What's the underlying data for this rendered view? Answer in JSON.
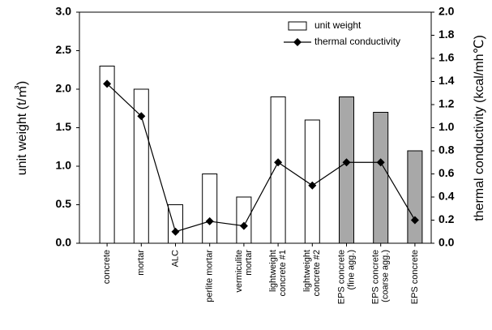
{
  "chart_data": {
    "type": "bar-line",
    "categories": [
      [
        "concrete"
      ],
      [
        "mortar"
      ],
      [
        "ALC"
      ],
      [
        "perlite mortar"
      ],
      [
        "vermiculite",
        "mortar"
      ],
      [
        "lightweight",
        "concrete #1"
      ],
      [
        "lightweight",
        "concrete #2"
      ],
      [
        "EPS concrete",
        "(fine agg.)"
      ],
      [
        "EPS concrete",
        "(coarse agg.)"
      ],
      [
        "EPS concrete"
      ]
    ],
    "series": [
      {
        "name": "unit weight",
        "type": "bar",
        "colors": [
          "#ffffff",
          "#ffffff",
          "#ffffff",
          "#ffffff",
          "#ffffff",
          "#ffffff",
          "#ffffff",
          "#a8a8a8",
          "#a8a8a8",
          "#a8a8a8"
        ],
        "values": [
          2.3,
          2.0,
          0.5,
          0.9,
          0.6,
          1.9,
          1.6,
          1.9,
          1.7,
          1.2
        ]
      },
      {
        "name": "thermal conductivity",
        "type": "line",
        "axis": "y2",
        "color": "#000000",
        "values": [
          1.38,
          1.1,
          0.1,
          0.19,
          0.15,
          0.7,
          0.5,
          0.7,
          0.7,
          0.2
        ]
      }
    ],
    "ylabel": "unit weight (t/㎥)",
    "y2label": "thermal conductivity (kcal/mh℃)",
    "ylim": [
      0,
      3
    ],
    "yticks": [
      {
        "value": 0,
        "label": "0.0"
      },
      0.5,
      {
        "value": 1,
        "label": "1.0"
      },
      1.5,
      {
        "value": 2,
        "label": "2.0"
      },
      2.5,
      {
        "value": 3,
        "label": "3.0"
      }
    ],
    "y2lim": [
      0,
      2
    ],
    "y2ticks": [
      {
        "value": 0,
        "label": "0.0"
      },
      0.2,
      0.4,
      0.6,
      0.8,
      {
        "value": 1,
        "label": "1.0"
      },
      1.2,
      1.4,
      1.6,
      1.8,
      {
        "value": 2,
        "label": "2.0"
      }
    ],
    "legend": "upper right"
  }
}
